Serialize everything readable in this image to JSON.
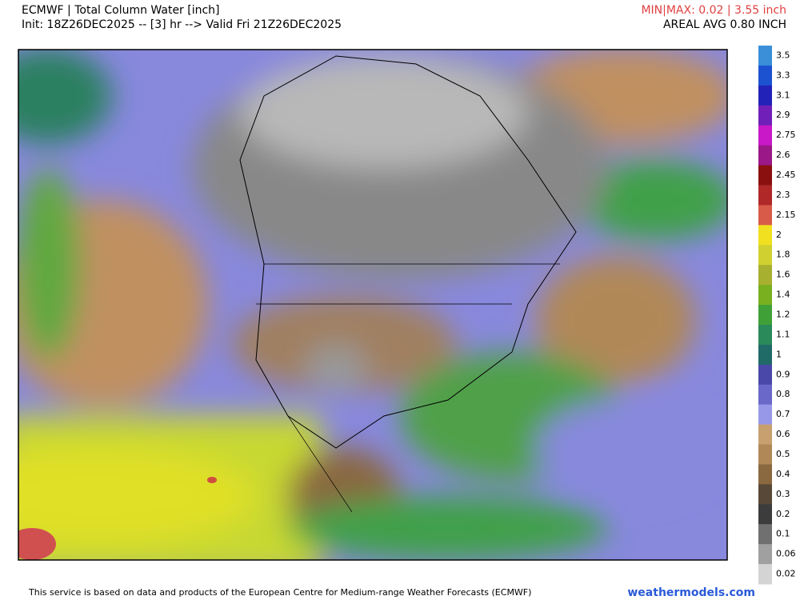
{
  "header": {
    "title": "ECMWF | Total Column Water [inch]",
    "init": "Init: 18Z26DEC2025 -- [3] hr --> Valid Fri 21Z26DEC2025",
    "minmax": "MIN|MAX: 0.02 | 3.55 inch",
    "avg": "AREAL AVG 0.80 INCH"
  },
  "colorbar": {
    "levels": [
      {
        "label": "3.5",
        "color": "#3a8fd8"
      },
      {
        "label": "3.3",
        "color": "#1c52d0"
      },
      {
        "label": "3.1",
        "color": "#2222b8"
      },
      {
        "label": "2.9",
        "color": "#7020b8"
      },
      {
        "label": "2.75",
        "color": "#c818c8"
      },
      {
        "label": "2.6",
        "color": "#9a1888"
      },
      {
        "label": "2.45",
        "color": "#8a1010"
      },
      {
        "label": "2.3",
        "color": "#b02828"
      },
      {
        "label": "2.15",
        "color": "#d85a48"
      },
      {
        "label": "2",
        "color": "#f0e020"
      },
      {
        "label": "1.8",
        "color": "#d0d030"
      },
      {
        "label": "1.6",
        "color": "#a8b030"
      },
      {
        "label": "1.4",
        "color": "#78b020"
      },
      {
        "label": "1.2",
        "color": "#40a038"
      },
      {
        "label": "1.1",
        "color": "#2a8a5a"
      },
      {
        "label": "1",
        "color": "#206a68"
      },
      {
        "label": "0.9",
        "color": "#4a48a8"
      },
      {
        "label": "0.8",
        "color": "#6a68c8"
      },
      {
        "label": "0.7",
        "color": "#9898e8"
      },
      {
        "label": "0.6",
        "color": "#c8a070"
      },
      {
        "label": "0.5",
        "color": "#b08858"
      },
      {
        "label": "0.4",
        "color": "#8a6840"
      },
      {
        "label": "0.3",
        "color": "#584838"
      },
      {
        "label": "0.2",
        "color": "#3c3c3c"
      },
      {
        "label": "0.1",
        "color": "#707070"
      },
      {
        "label": "0.06",
        "color": "#a0a0a0"
      },
      {
        "label": "0.02",
        "color": "#d4d4d4"
      }
    ]
  },
  "footer": {
    "notice": "This service is based on data and products of the European Centre for Medium-range Weather Forecasts (ECMWF)",
    "brand": "weathermodels.com"
  }
}
